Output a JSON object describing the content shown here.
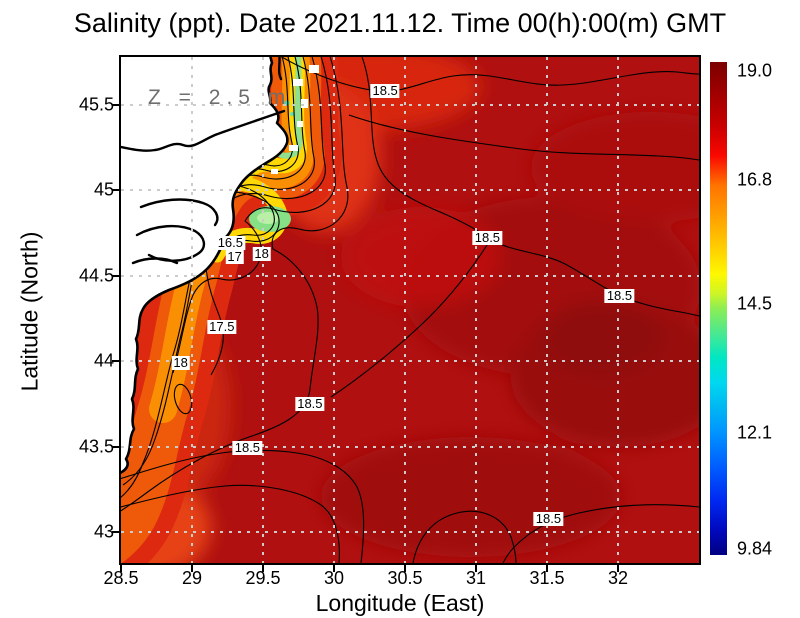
{
  "title": "Salinity (ppt). Date 2021.11.12. Time 00(h):00(m) GMT",
  "annotation": "Z = 2.5 m",
  "colors": {
    "sea_deep_red": "#b01010",
    "sea_dark_patch": "#960707",
    "plume_orange": "#f4730a",
    "plume_yellow": "#ffd805",
    "plume_green": "#8fe08f",
    "land": "#ffffff",
    "coastline": "#000000",
    "grid": "#cccccc",
    "annotation_gray": "#6e6e6e"
  },
  "chart_data": {
    "type": "heatmap",
    "variant": "filled contour map with overlaid contour lines",
    "title": "Salinity (ppt). Date 2021.11.12. Time 00(h):00(m) GMT",
    "annotation": "Z = 2.5 m",
    "xlabel": "Longitude (East)",
    "ylabel": "Latitude (North)",
    "xlim": [
      28.5,
      32.57
    ],
    "ylim": [
      42.82,
      45.78
    ],
    "x_ticks": [
      28.5,
      29,
      29.5,
      30,
      30.5,
      31,
      31.5,
      32
    ],
    "y_ticks": [
      43,
      43.5,
      44,
      44.5,
      45,
      45.5
    ],
    "grid": true,
    "grid_style": "dotted light gray every 0.5 degree",
    "colorbar": {
      "position": "right",
      "min": 9.84,
      "max": 19.0,
      "ticks": [
        {
          "label": "19.0",
          "value": 19.0
        },
        {
          "label": "16.8",
          "value": 16.8
        },
        {
          "label": "14.5",
          "value": 14.5
        },
        {
          "label": "12.1",
          "value": 12.1
        },
        {
          "label": "9.84",
          "value": 9.84
        }
      ],
      "colormap": "jet (dark red high salinity to dark blue low salinity)"
    },
    "contour_interval": 0.5,
    "contour_labels": [
      {
        "value": "18.5",
        "lon": 30.36,
        "lat": 45.58
      },
      {
        "value": "18.5",
        "lon": 31.08,
        "lat": 44.72
      },
      {
        "value": "18.5",
        "lon": 32.01,
        "lat": 44.38
      },
      {
        "value": "16.5",
        "lon": 29.27,
        "lat": 44.69
      },
      {
        "value": "17",
        "lon": 29.3,
        "lat": 44.61
      },
      {
        "value": "18",
        "lon": 29.49,
        "lat": 44.63
      },
      {
        "value": "17.5",
        "lon": 29.21,
        "lat": 44.2
      },
      {
        "value": "18",
        "lon": 28.92,
        "lat": 43.99
      },
      {
        "value": "18.5",
        "lon": 29.83,
        "lat": 43.75
      },
      {
        "value": "18.5",
        "lon": 29.39,
        "lat": 43.49
      },
      {
        "value": "18.5",
        "lon": 31.51,
        "lat": 43.08
      }
    ]
  }
}
